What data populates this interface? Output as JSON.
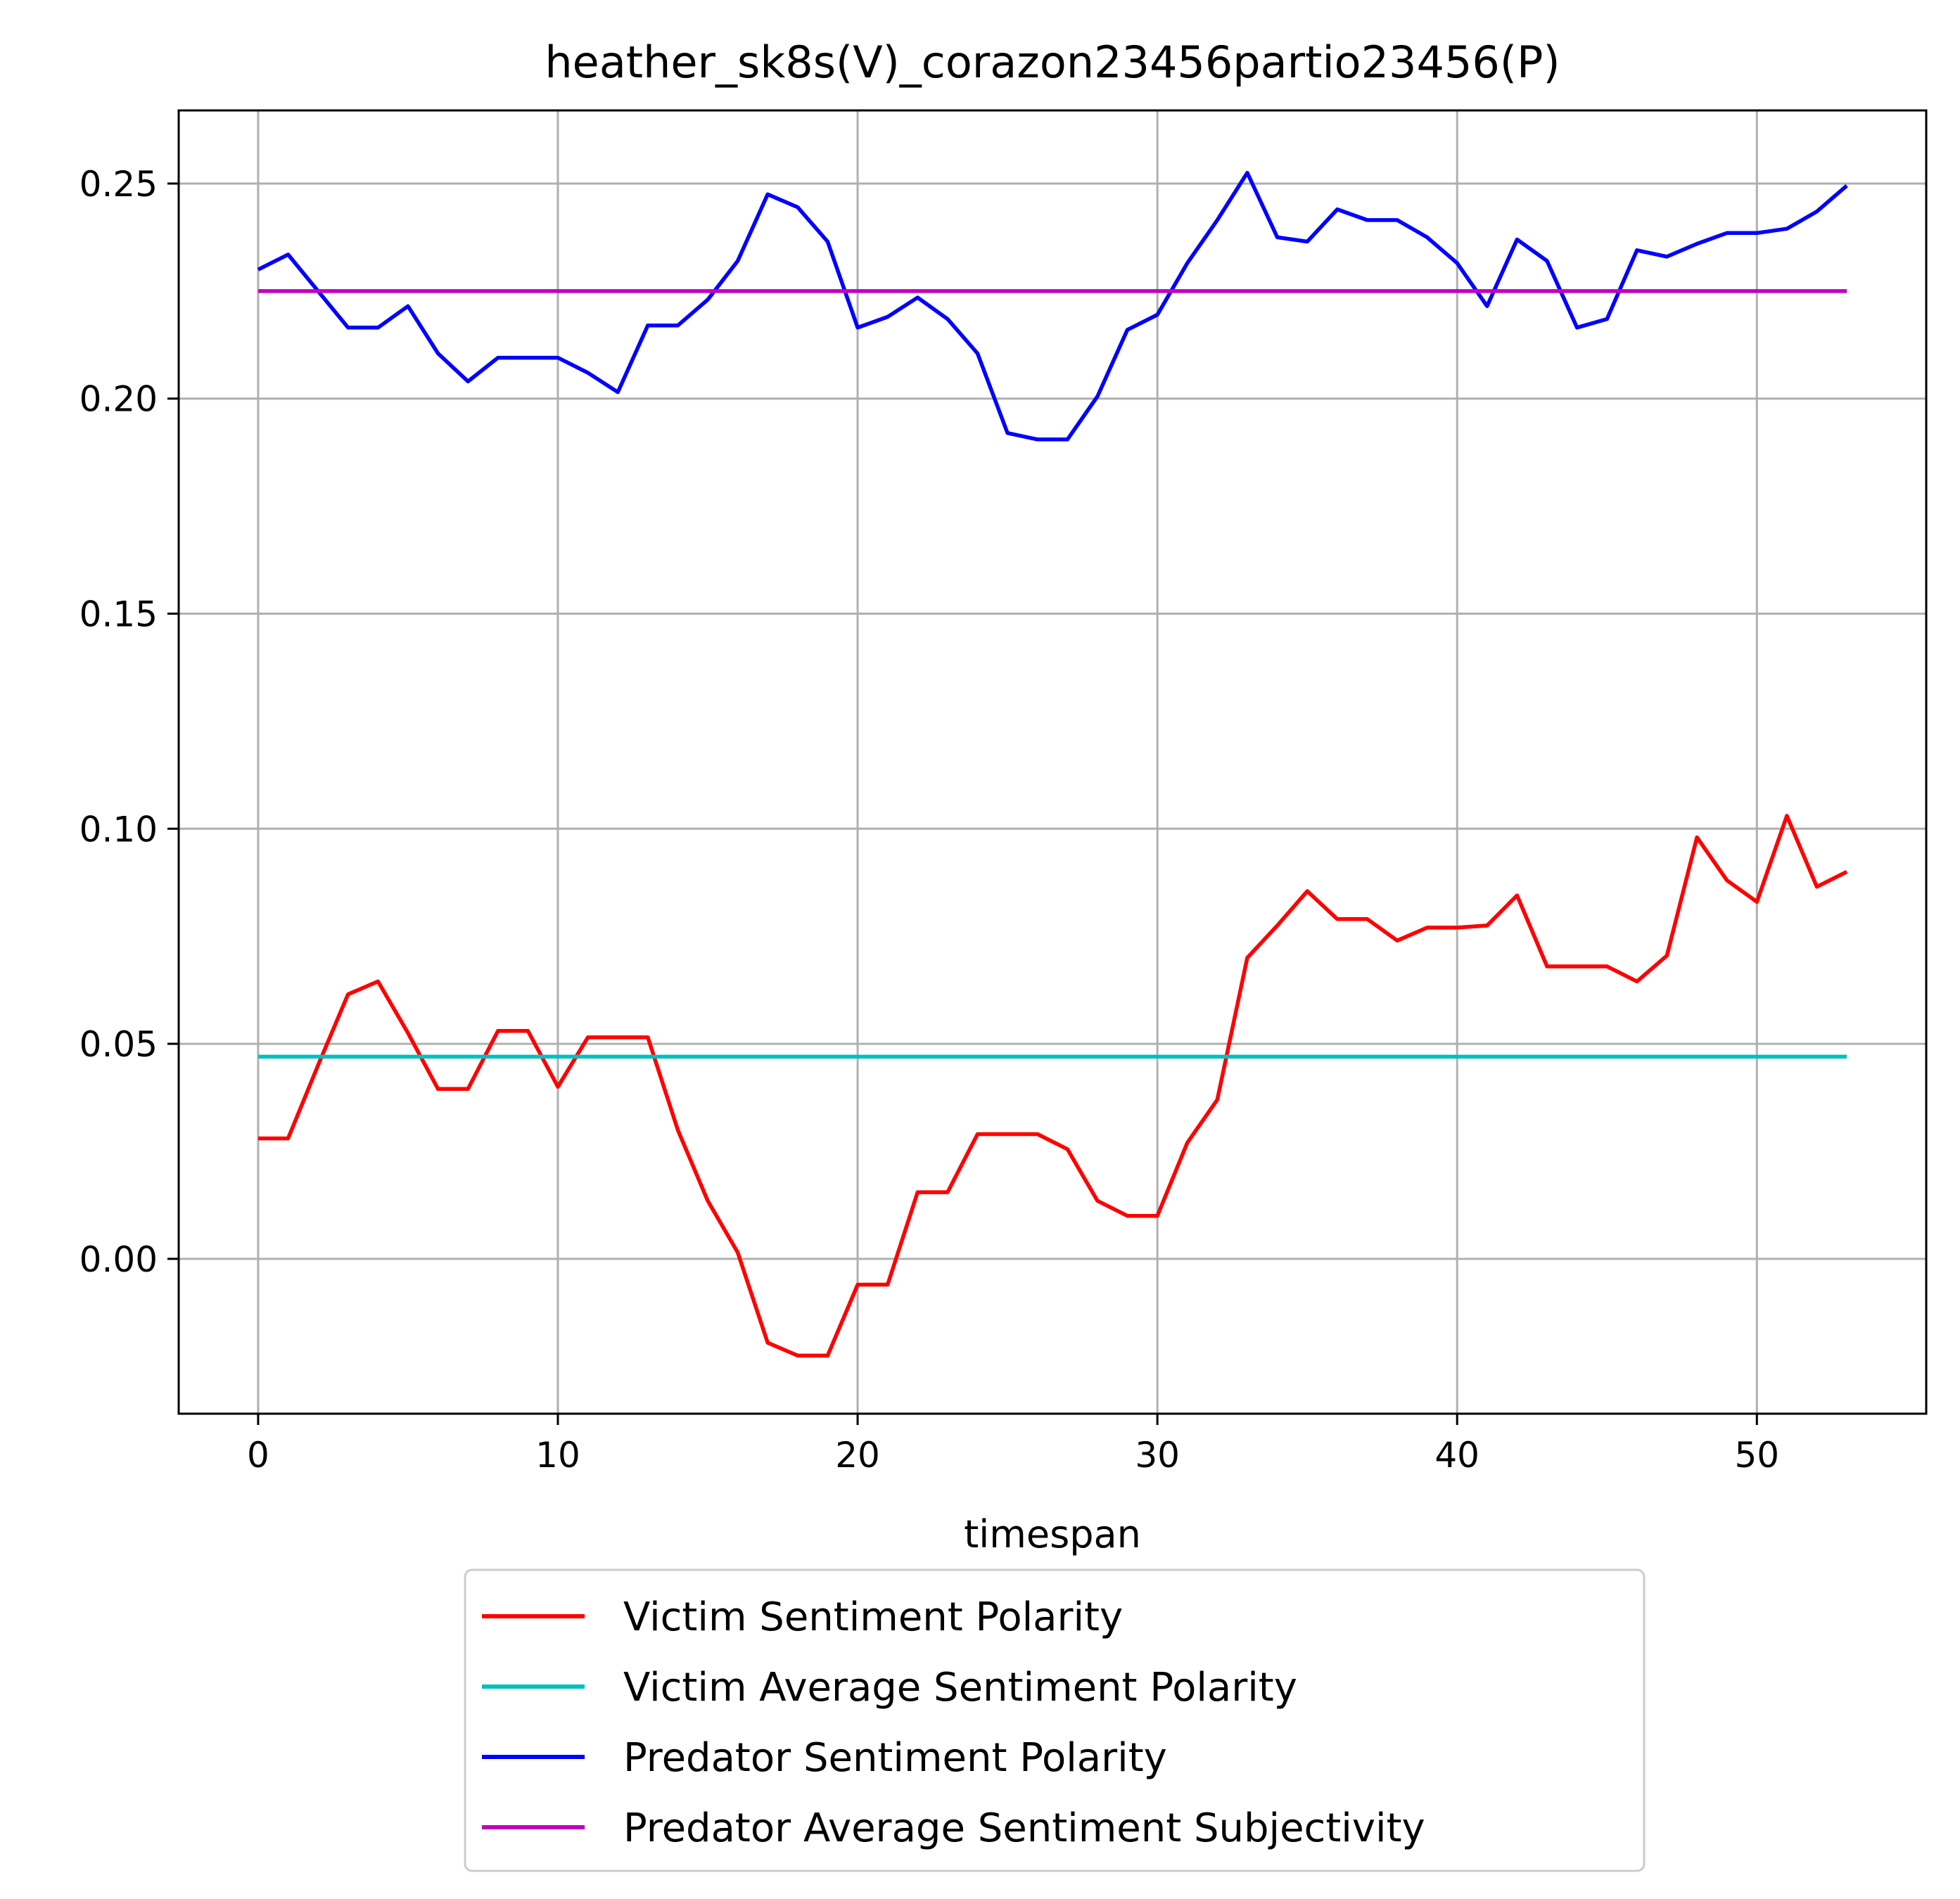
{
  "chart_data": {
    "type": "line",
    "title": "heather_sk8s(V)_corazon23456partio23456(P)",
    "xlabel": "timespan",
    "ylabel": "",
    "xlim": [
      -2.65,
      55.65
    ],
    "ylim": [
      -0.036,
      0.267
    ],
    "xticks": [
      0,
      10,
      20,
      30,
      40,
      50
    ],
    "xtick_labels": [
      "0",
      "10",
      "20",
      "30",
      "40",
      "50"
    ],
    "yticks": [
      0.0,
      0.05,
      0.1,
      0.15,
      0.2,
      0.25
    ],
    "ytick_labels": [
      "0.00",
      "0.05",
      "0.10",
      "0.15",
      "0.20",
      "0.25"
    ],
    "grid": true,
    "legend_position": "below-center",
    "x": [
      0,
      1,
      2,
      3,
      4,
      5,
      6,
      7,
      8,
      9,
      10,
      11,
      12,
      13,
      14,
      15,
      16,
      17,
      18,
      19,
      20,
      21,
      22,
      23,
      24,
      25,
      26,
      27,
      28,
      29,
      30,
      31,
      32,
      33,
      34,
      35,
      36,
      37,
      38,
      39,
      40,
      41,
      42,
      43,
      44,
      45,
      46,
      47,
      48,
      49,
      50,
      51,
      52,
      53
    ],
    "series": [
      {
        "name": "Victim Sentiment Polarity",
        "color": "#ff0000",
        "values": [
          0.028,
          0.028,
          0.045,
          0.0615,
          0.0645,
          0.0525,
          0.0395,
          0.0395,
          0.053,
          0.053,
          0.04,
          0.0515,
          0.0515,
          0.0515,
          0.03,
          0.0135,
          0.0015,
          -0.0195,
          -0.0225,
          -0.0225,
          -0.006,
          -0.006,
          0.0155,
          0.0155,
          0.029,
          0.029,
          0.029,
          0.0255,
          0.0135,
          0.01,
          0.01,
          0.027,
          0.037,
          0.07,
          0.0775,
          0.0855,
          0.079,
          0.079,
          0.074,
          0.077,
          0.077,
          0.0775,
          0.0845,
          0.068,
          0.068,
          0.068,
          0.0645,
          0.0705,
          0.098,
          0.088,
          0.083,
          0.103,
          0.0865,
          0.09
        ]
      },
      {
        "name": "Victim Average Sentiment Polarity",
        "color": "#00bfbf",
        "values": [
          0.047,
          0.047,
          0.047,
          0.047,
          0.047,
          0.047,
          0.047,
          0.047,
          0.047,
          0.047,
          0.047,
          0.047,
          0.047,
          0.047,
          0.047,
          0.047,
          0.047,
          0.047,
          0.047,
          0.047,
          0.047,
          0.047,
          0.047,
          0.047,
          0.047,
          0.047,
          0.047,
          0.047,
          0.047,
          0.047,
          0.047,
          0.047,
          0.047,
          0.047,
          0.047,
          0.047,
          0.047,
          0.047,
          0.047,
          0.047,
          0.047,
          0.047,
          0.047,
          0.047,
          0.047,
          0.047,
          0.047,
          0.047,
          0.047,
          0.047,
          0.047,
          0.047,
          0.047,
          0.047
        ]
      },
      {
        "name": "Predator Sentiment Polarity",
        "color": "#0000ff",
        "values": [
          0.23,
          0.2335,
          0.225,
          0.2165,
          0.2165,
          0.2215,
          0.2105,
          0.204,
          0.2095,
          0.2095,
          0.2095,
          0.206,
          0.2015,
          0.217,
          0.217,
          0.223,
          0.232,
          0.2475,
          0.2445,
          0.2365,
          0.2165,
          0.219,
          0.2235,
          0.2185,
          0.2105,
          0.192,
          0.1905,
          0.1905,
          0.2005,
          0.216,
          0.2195,
          0.2315,
          0.2415,
          0.2525,
          0.2375,
          0.2365,
          0.244,
          0.2415,
          0.2415,
          0.2375,
          0.2315,
          0.2215,
          0.237,
          0.232,
          0.2165,
          0.2185,
          0.2345,
          0.233,
          0.236,
          0.2385,
          0.2385,
          0.2395,
          0.2435,
          0.2495
        ]
      },
      {
        "name": "Predator Average Sentiment Subjectivity",
        "color": "#bf00bf",
        "values": [
          0.225,
          0.225,
          0.225,
          0.225,
          0.225,
          0.225,
          0.225,
          0.225,
          0.225,
          0.225,
          0.225,
          0.225,
          0.225,
          0.225,
          0.225,
          0.225,
          0.225,
          0.225,
          0.225,
          0.225,
          0.225,
          0.225,
          0.225,
          0.225,
          0.225,
          0.225,
          0.225,
          0.225,
          0.225,
          0.225,
          0.225,
          0.225,
          0.225,
          0.225,
          0.225,
          0.225,
          0.225,
          0.225,
          0.225,
          0.225,
          0.225,
          0.225,
          0.225,
          0.225,
          0.225,
          0.225,
          0.225,
          0.225,
          0.225,
          0.225,
          0.225,
          0.225,
          0.225,
          0.225
        ]
      }
    ]
  }
}
